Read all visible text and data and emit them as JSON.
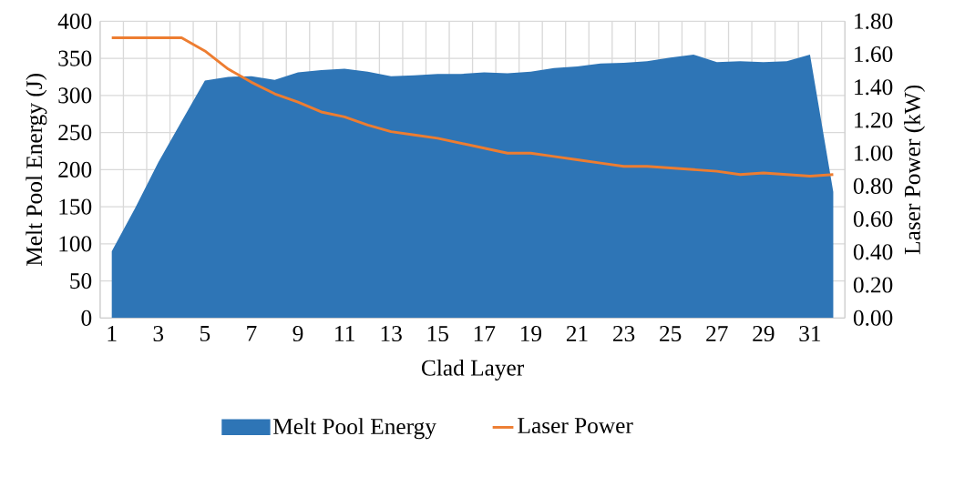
{
  "chart_data": {
    "type": "area",
    "xlabel": "Clad Layer",
    "ylabel": "Melt Pool Energy (J)",
    "y2label": "Laser Power (kW)",
    "categories": [
      "1",
      null,
      "3",
      null,
      "5",
      null,
      "7",
      null,
      "9",
      null,
      "11",
      null,
      "13",
      null,
      "15",
      null,
      "17",
      null,
      "19",
      null,
      "21",
      null,
      "23",
      null,
      "25",
      null,
      "27",
      null,
      "29",
      null,
      "31",
      null
    ],
    "series": [
      {
        "name": "Melt Pool Energy",
        "color": "#2e75b6",
        "values": [
          90,
          148,
          210,
          265,
          320,
          325,
          326,
          321,
          331,
          334,
          336,
          332,
          326,
          327,
          329,
          329,
          331,
          330,
          332,
          337,
          339,
          343,
          344,
          346,
          351,
          355,
          345,
          346,
          345,
          346,
          355,
          170
        ]
      },
      {
        "name": "Laser Power",
        "type": "line",
        "axis": "y2",
        "color": "#ed7d31",
        "values": [
          1.7,
          1.7,
          1.7,
          1.7,
          1.62,
          1.51,
          1.43,
          1.36,
          1.31,
          1.25,
          1.22,
          1.17,
          1.13,
          1.11,
          1.09,
          1.06,
          1.03,
          1.0,
          1.0,
          0.98,
          0.96,
          0.94,
          0.92,
          0.92,
          0.91,
          0.9,
          0.89,
          0.87,
          0.88,
          0.87,
          0.86,
          0.87
        ]
      }
    ],
    "ylim": [
      0,
      400
    ],
    "yticks": [
      0,
      50,
      100,
      150,
      200,
      250,
      300,
      350,
      400
    ],
    "y2lim": [
      0,
      1.8
    ],
    "y2ticks": [
      {
        "value": 0,
        "label": "0.00"
      },
      {
        "value": 0.2,
        "label": "0.20"
      },
      {
        "value": 0.4,
        "label": "0.40"
      },
      {
        "value": 0.6,
        "label": "0.60"
      },
      {
        "value": 0.8,
        "label": "0.80"
      },
      {
        "value": 1.0,
        "label": "1.00"
      },
      {
        "value": 1.2,
        "label": "1.20"
      },
      {
        "value": 1.4,
        "label": "1.40"
      },
      {
        "value": 1.6,
        "label": "1.60"
      },
      {
        "value": 1.8,
        "label": "1.80"
      }
    ],
    "grid": true,
    "legend": "bottom"
  }
}
